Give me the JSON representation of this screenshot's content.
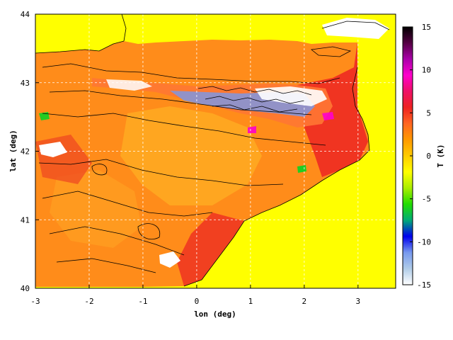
{
  "chart_data": {
    "type": "heatmap",
    "title": "",
    "xlabel": "lon (deg)",
    "ylabel": "lat (deg)",
    "xlim": [
      -3,
      3.7
    ],
    "ylim": [
      40,
      44
    ],
    "x_ticks": [
      -3,
      -2,
      -1,
      0,
      1,
      2,
      3
    ],
    "y_ticks": [
      40,
      41,
      42,
      43,
      44
    ],
    "x_tick_labels": [
      "-3",
      "-2",
      "-1",
      "0",
      "1",
      "2",
      "3"
    ],
    "y_tick_labels": [
      "40",
      "41",
      "42",
      "43",
      "44"
    ],
    "grid": true,
    "grid_style": "dashed",
    "colorbar": {
      "label": "T (K)",
      "range": [
        -15,
        15
      ],
      "ticks": [
        -15,
        -10,
        -5,
        0,
        5,
        10,
        15
      ],
      "tick_labels": [
        "-15",
        "-10",
        "-5",
        "0",
        "5",
        "10",
        "15"
      ],
      "colors": [
        "#ffffff",
        "#b0cce8",
        "#7799ee",
        "#0000ee",
        "#00aa77",
        "#22dd00",
        "#aaee00",
        "#ffff00",
        "#ffcc00",
        "#ff9900",
        "#ff6622",
        "#ee2222",
        "#ee1166",
        "#ff00cc",
        "#aa00aa",
        "#550044",
        "#000000"
      ]
    },
    "sea_value_K": 0.5,
    "description_values": {
      "lowland_typical_K": [
        3,
        5
      ],
      "coastal_NE_max_K": 7,
      "pyrenees_min_K": -15
    },
    "contours": "terrain elevation isolines"
  }
}
